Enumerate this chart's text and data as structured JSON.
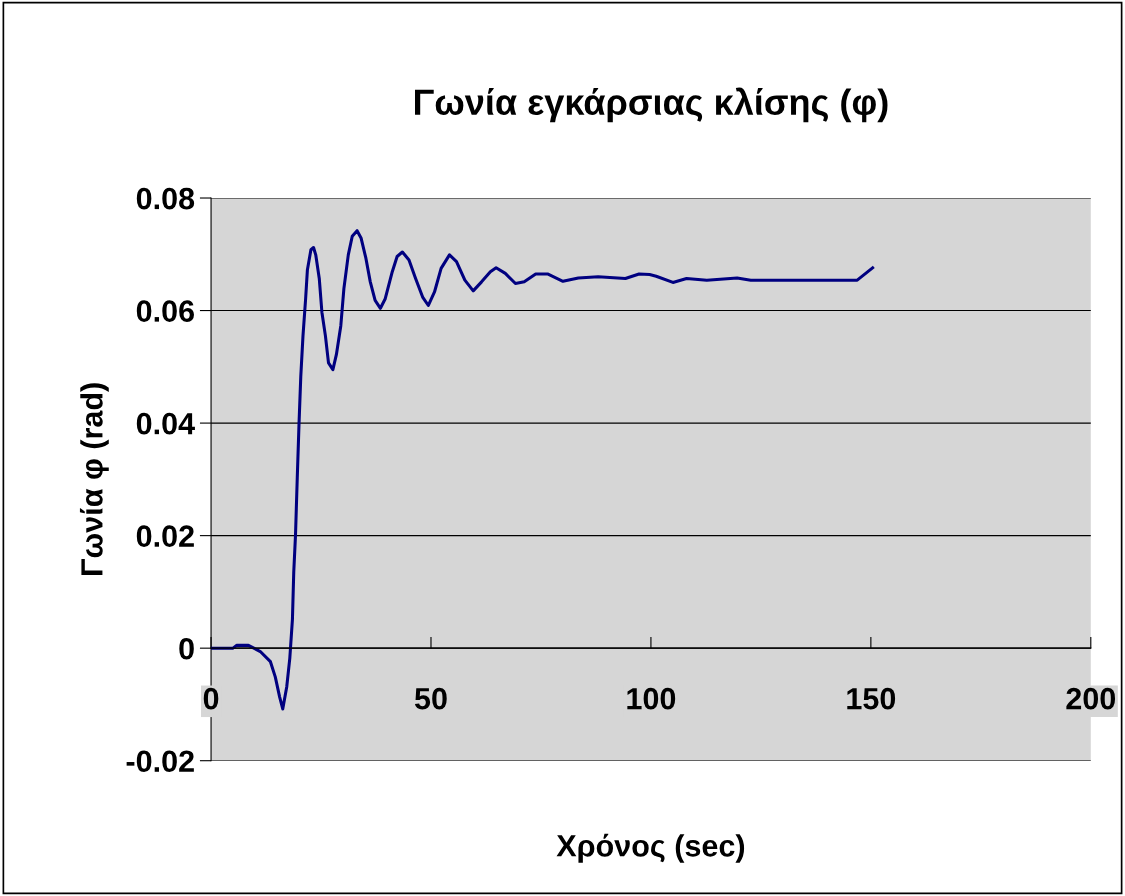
{
  "chart_data": {
    "type": "line",
    "title": "Γωνία εγκάρσιας κλίσης (φ)",
    "xlabel": "Χρόνος (sec)",
    "ylabel": "Γωνία φ (rad)",
    "xlim": [
      0,
      200
    ],
    "xticks": [
      0,
      50,
      100,
      150,
      200
    ],
    "ylim": [
      -0.02,
      0.08
    ],
    "yticks": [
      -0.02,
      0,
      0.02,
      0.04,
      0.06,
      0.08
    ],
    "grid": "y",
    "legend": false,
    "marker": "none",
    "line_style": "solid",
    "series": [
      {
        "color": "#000080",
        "x": [
          0,
          5,
          5.8,
          8.5,
          11.2,
          13.5,
          14.6,
          15.6,
          16.3,
          17.2,
          17.9,
          18.5,
          18.8,
          19.2,
          19.6,
          20,
          20.4,
          20.9,
          21.5,
          21.9,
          22.7,
          23.3,
          23.8,
          24.6,
          25.2,
          26,
          26.7,
          27.7,
          28.5,
          29.5,
          30.2,
          31.2,
          32.1,
          33.2,
          34.1,
          35.2,
          36.2,
          37.3,
          38.5,
          39.6,
          41.2,
          42.3,
          43.5,
          45,
          46.5,
          48.1,
          49.4,
          50.8,
          52.3,
          54.2,
          55.8,
          57.7,
          59.6,
          61.5,
          63.5,
          64.8,
          66.9,
          69.2,
          71.2,
          73.8,
          76.5,
          80,
          83.5,
          88,
          94.2,
          97.3,
          99.7,
          101.2,
          105,
          108.1,
          112.7,
          119.6,
          122.7,
          146.9,
          150.4
        ],
        "values": [
          0,
          0,
          0.0005,
          0.0005,
          -0.0006,
          -0.0024,
          -0.0051,
          -0.0087,
          -0.0108,
          -0.0069,
          -0.0018,
          0.0051,
          0.0135,
          0.0201,
          0.0303,
          0.0399,
          0.0483,
          0.0555,
          0.0621,
          0.0672,
          0.0708,
          0.0712,
          0.0699,
          0.0657,
          0.0597,
          0.0555,
          0.0507,
          0.0495,
          0.0522,
          0.0573,
          0.0639,
          0.0699,
          0.0732,
          0.0742,
          0.0729,
          0.0693,
          0.0651,
          0.0618,
          0.0604,
          0.0621,
          0.0669,
          0.0696,
          0.0704,
          0.069,
          0.0657,
          0.0624,
          0.0609,
          0.0633,
          0.0675,
          0.0699,
          0.0687,
          0.0654,
          0.0635,
          0.0651,
          0.0669,
          0.0676,
          0.0666,
          0.0648,
          0.0651,
          0.0665,
          0.0665,
          0.0652,
          0.0658,
          0.066,
          0.0657,
          0.0665,
          0.0664,
          0.0661,
          0.065,
          0.0657,
          0.0654,
          0.0658,
          0.0654,
          0.0654,
          0.0676
        ]
      }
    ]
  }
}
